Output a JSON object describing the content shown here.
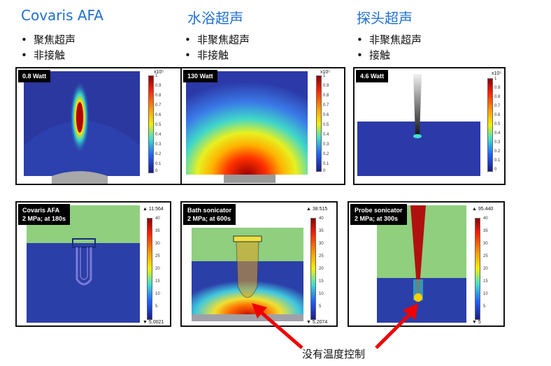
{
  "columns": [
    {
      "title": "Covaris AFA",
      "bullets": [
        "聚焦超声",
        "非接触"
      ]
    },
    {
      "title": "水浴超声",
      "bullets": [
        "非聚焦超声",
        "非接触"
      ]
    },
    {
      "title": "探头超声",
      "bullets": [
        "非聚焦超声",
        "接触"
      ]
    }
  ],
  "top_panels": [
    {
      "tag": "0.8 Watt",
      "exp": "x10⁵",
      "ticks": [
        "1",
        "0.9",
        "0.8",
        "0.7",
        "0.6",
        "0.5",
        "0.4",
        "0.3",
        "0.2",
        "0.1",
        "0"
      ]
    },
    {
      "tag": "130 Watt",
      "exp": "x10⁵",
      "ticks": [
        "1",
        "0.9",
        "0.8",
        "0.7",
        "0.6",
        "0.5",
        "0.4",
        "0.3",
        "0.2",
        "0.1",
        "0"
      ]
    },
    {
      "tag": "4.6 Watt",
      "exp": "x10⁵",
      "ticks": [
        "1",
        "0.9",
        "0.8",
        "0.7",
        "0.6",
        "0.5",
        "0.4",
        "0.3",
        "0.2",
        "0.1",
        "0"
      ]
    }
  ],
  "bottom_panels": [
    {
      "tag": "Covaris AFA\n2 MPa; at 180s",
      "max": "▲ 11.564",
      "min": "▼ 5.0021",
      "ticks": [
        "40",
        "35",
        "30",
        "25",
        "20",
        "15",
        "10",
        "5"
      ]
    },
    {
      "tag": "Bath sonicator\n2 MPa; at 600s",
      "max": "▲ 38.515",
      "min": "▼ 5.2074",
      "ticks": [
        "40",
        "35",
        "30",
        "25",
        "20",
        "15",
        "10",
        "5"
      ]
    },
    {
      "tag": "Probe sonicator\n2 MPa; at 300s",
      "max": "▲ 95.440",
      "min": "▼ 5",
      "ticks": [
        "40",
        "35",
        "30",
        "25",
        "20",
        "15",
        "10",
        "5"
      ]
    }
  ],
  "annotation": "没有温度控制",
  "colors": {
    "title": "#1f6fd1",
    "arrow": "#ee0000",
    "blue": "#2b3fa8",
    "green": "#8fcf7e"
  }
}
